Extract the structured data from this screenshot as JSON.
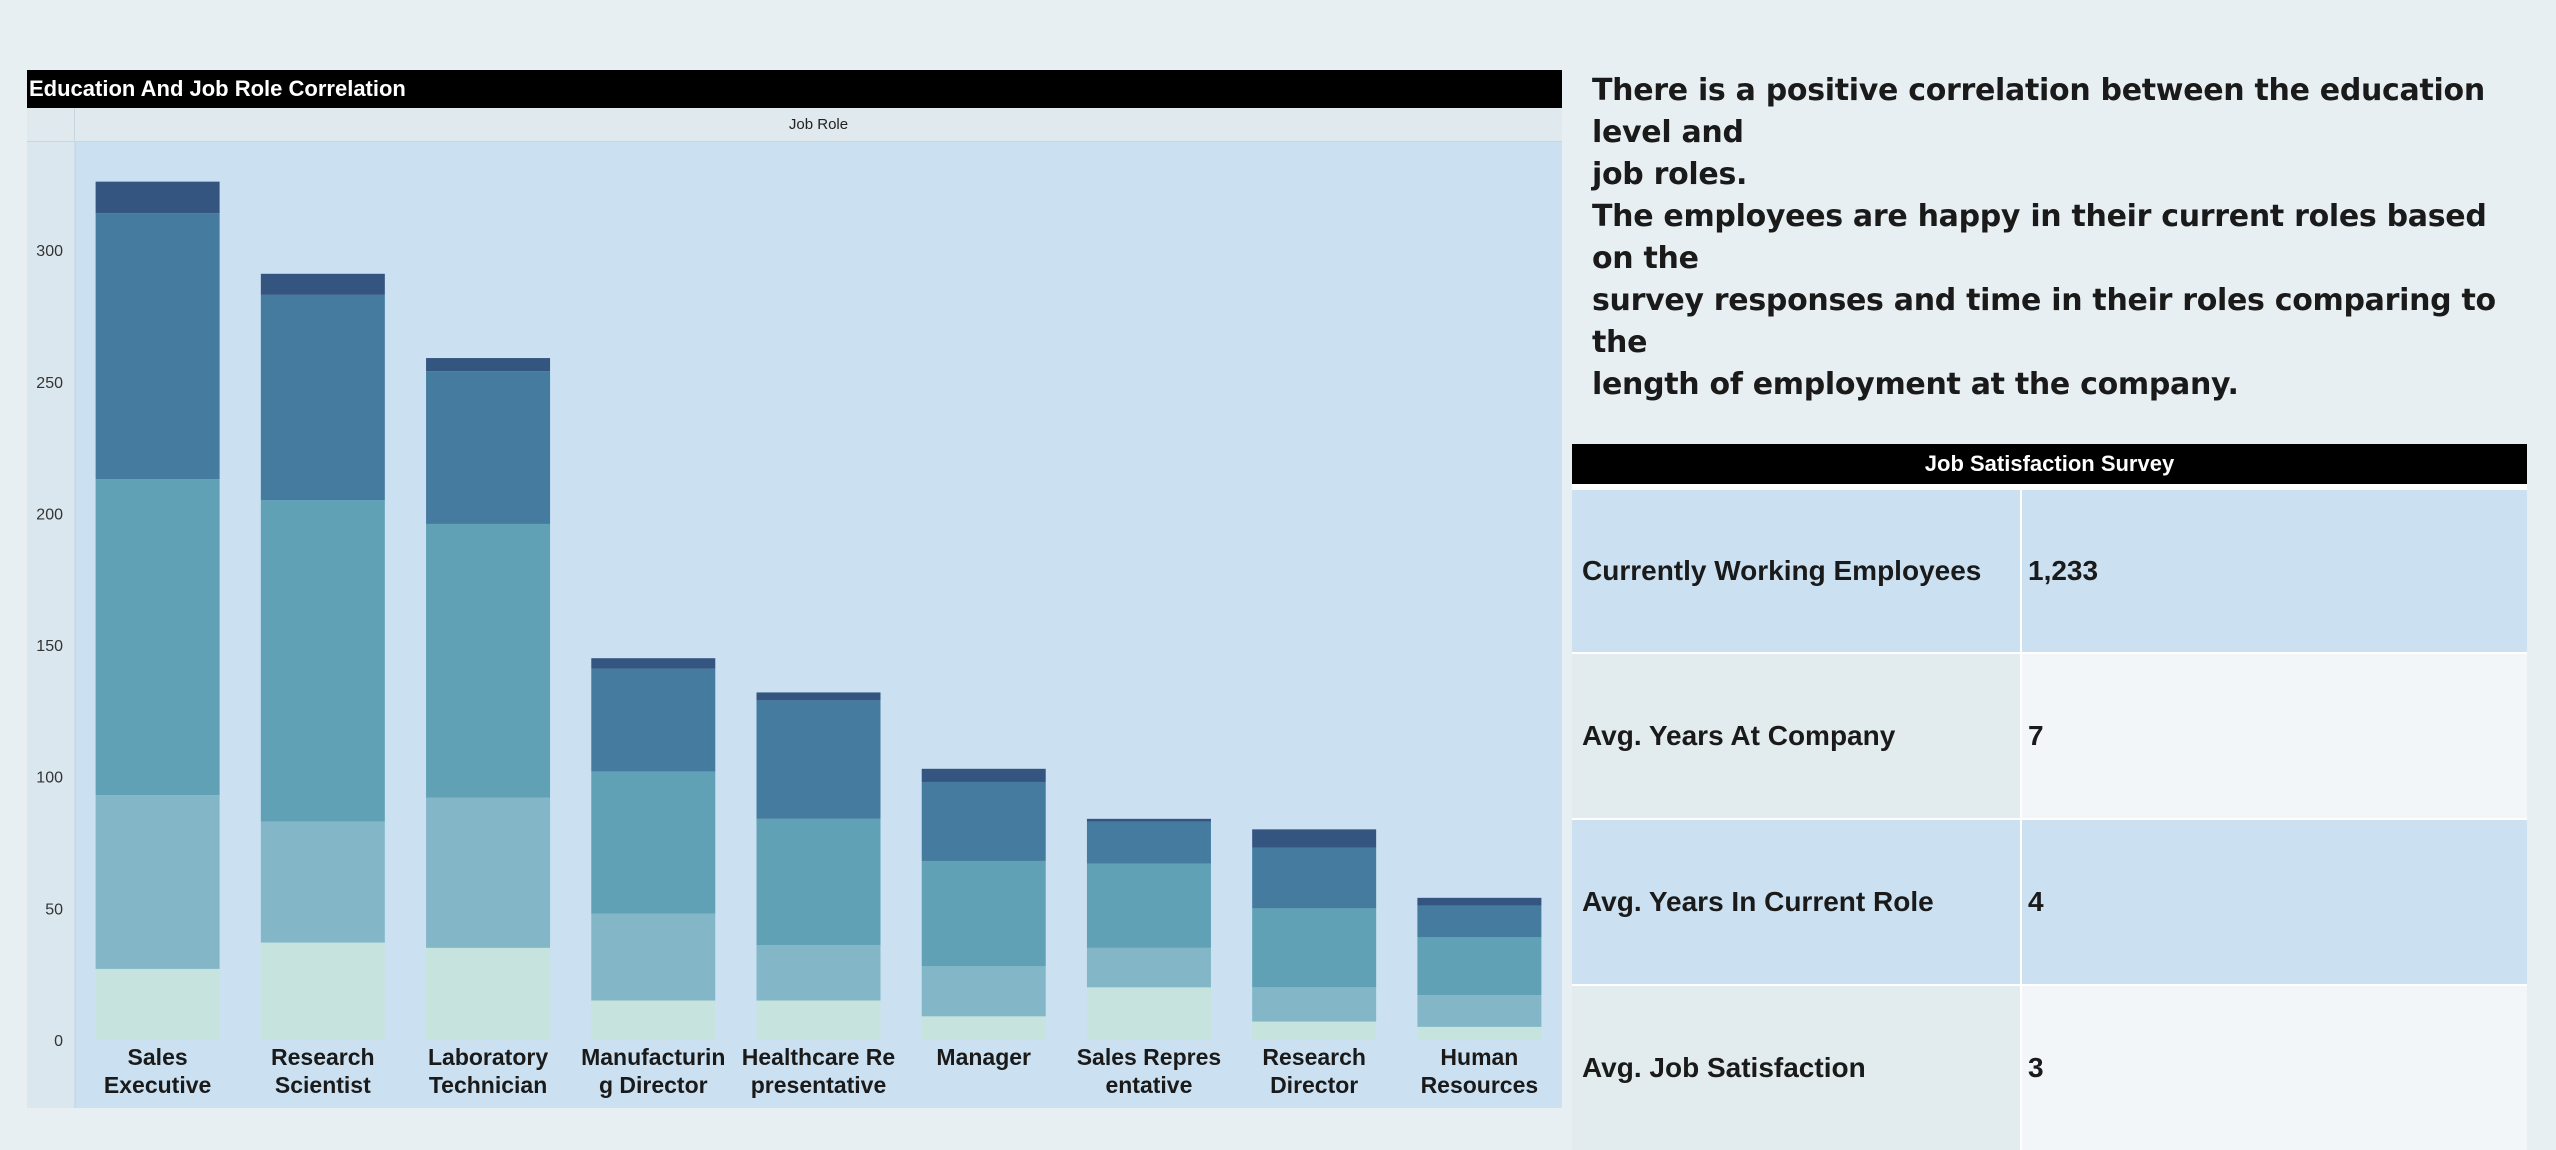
{
  "chart_title": "Education And Job Role Correlation",
  "axis_header": "Job Role",
  "insight": {
    "lines": [
      "There is a positive correlation between the education level and",
      "job roles.",
      "The employees are happy in their current roles based on the",
      "survey responses and time in their roles comparing to the",
      "length of employment at the company."
    ]
  },
  "survey": {
    "title": "Job Satisfaction Survey",
    "rows": [
      {
        "label": "Currently Working Employees",
        "value": "1,233"
      },
      {
        "label": "Avg. Years At Company",
        "value": "7"
      },
      {
        "label": "Avg. Years In Current Role",
        "value": "4"
      },
      {
        "label": "Avg. Job Satisfaction",
        "value": "3"
      }
    ]
  },
  "colors": {
    "plot_background": "#cbe1f1",
    "segments": [
      "#c6e3dd",
      "#83b7c7",
      "#60a1b6",
      "#457b9f",
      "#34557f"
    ]
  },
  "chart_data": {
    "type": "bar",
    "stacked": true,
    "title": "Education And Job Role Correlation",
    "xlabel": "Job Role",
    "ylabel": "",
    "ylim": [
      0,
      325
    ],
    "yticks": [
      0,
      50,
      100,
      150,
      200,
      250,
      300
    ],
    "categories": [
      [
        "Sales",
        "Executive"
      ],
      [
        "Research",
        "Scientist"
      ],
      [
        "Laboratory",
        "Technician"
      ],
      [
        "Manufacturin",
        "g Director"
      ],
      [
        "Healthcare Re",
        "presentative"
      ],
      [
        "Manager",
        ""
      ],
      [
        "Sales Repres",
        "entative"
      ],
      [
        "Research",
        "Director"
      ],
      [
        "Human",
        "Resources"
      ]
    ],
    "series": [
      {
        "values": [
          27,
          37,
          35,
          15,
          15,
          9,
          20,
          7,
          5
        ]
      },
      {
        "values": [
          66,
          46,
          57,
          33,
          21,
          19,
          15,
          13,
          12
        ]
      },
      {
        "values": [
          120,
          122,
          104,
          54,
          48,
          40,
          32,
          30,
          22
        ]
      },
      {
        "values": [
          101,
          78,
          58,
          39,
          45,
          30,
          16,
          23,
          12
        ]
      },
      {
        "values": [
          12,
          8,
          5,
          4,
          3,
          5,
          1,
          7,
          3
        ]
      }
    ]
  }
}
